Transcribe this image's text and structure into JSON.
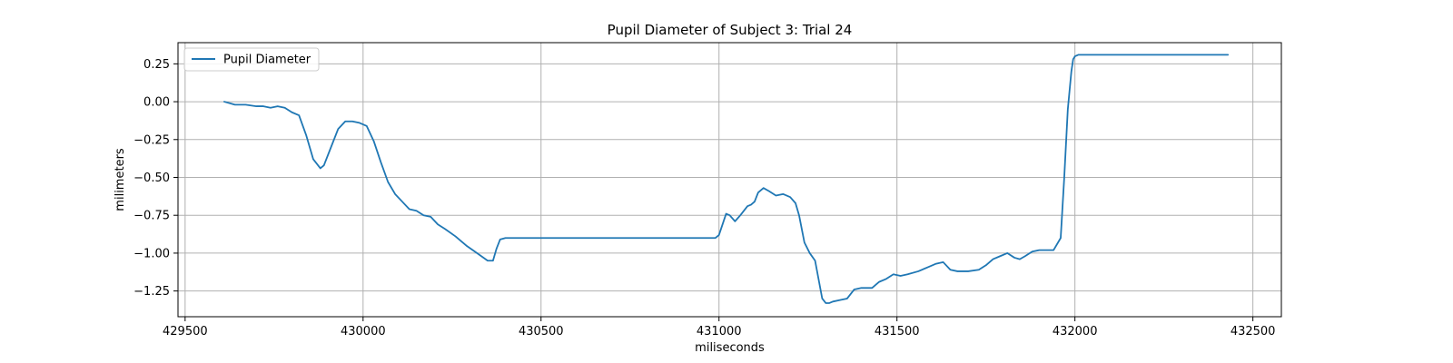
{
  "chart_data": {
    "type": "line",
    "title": "Pupil Diameter of Subject 3: Trial 24",
    "xlabel": "miliseconds",
    "ylabel": "milimeters",
    "xlim": [
      429480,
      432580
    ],
    "ylim": [
      -1.42,
      0.39
    ],
    "xticks": [
      429500,
      430000,
      430500,
      431000,
      431500,
      432000,
      432500
    ],
    "xtick_labels": [
      "429500",
      "430000",
      "430500",
      "431000",
      "431500",
      "432000",
      "432500"
    ],
    "yticks": [
      0.25,
      0.0,
      -0.25,
      -0.5,
      -0.75,
      -1.0,
      -1.25
    ],
    "ytick_labels": [
      "0.25",
      "0.00",
      "−0.25",
      "−0.50",
      "−0.75",
      "−1.00",
      "−1.25"
    ],
    "grid": true,
    "legend": {
      "position": "upper-left",
      "entries": [
        "Pupil Diameter"
      ]
    },
    "series": [
      {
        "name": "Pupil Diameter",
        "color": "#1f77b4",
        "x": [
          429610,
          429640,
          429670,
          429700,
          429720,
          429740,
          429760,
          429780,
          429800,
          429820,
          429840,
          429860,
          429880,
          429890,
          429910,
          429930,
          429950,
          429970,
          429990,
          430010,
          430030,
          430050,
          430070,
          430090,
          430110,
          430130,
          430150,
          430170,
          430190,
          430210,
          430230,
          430260,
          430290,
          430320,
          430350,
          430365,
          430375,
          430385,
          430400,
          430500,
          430600,
          430700,
          430800,
          430900,
          430990,
          431000,
          431010,
          431020,
          431030,
          431045,
          431060,
          431080,
          431090,
          431100,
          431110,
          431125,
          431140,
          431160,
          431180,
          431200,
          431215,
          431225,
          431240,
          431255,
          431270,
          431290,
          431300,
          431310,
          431320,
          431340,
          431360,
          431380,
          431400,
          431430,
          431450,
          431470,
          431490,
          431510,
          431530,
          431560,
          431590,
          431610,
          431630,
          431650,
          431670,
          431700,
          431730,
          431750,
          431770,
          431790,
          431810,
          431830,
          431845,
          431860,
          431880,
          431900,
          431920,
          431940,
          431960,
          431970,
          431980,
          431990,
          431995,
          432000,
          432010,
          432020,
          432100,
          432200,
          432300,
          432390,
          432430
        ],
        "y": [
          0.0,
          -0.02,
          -0.02,
          -0.03,
          -0.03,
          -0.04,
          -0.03,
          -0.04,
          -0.07,
          -0.09,
          -0.22,
          -0.38,
          -0.44,
          -0.42,
          -0.3,
          -0.18,
          -0.13,
          -0.13,
          -0.14,
          -0.16,
          -0.26,
          -0.4,
          -0.53,
          -0.61,
          -0.66,
          -0.71,
          -0.72,
          -0.75,
          -0.76,
          -0.81,
          -0.84,
          -0.89,
          -0.95,
          -1.0,
          -1.05,
          -1.05,
          -0.97,
          -0.91,
          -0.9,
          -0.9,
          -0.9,
          -0.9,
          -0.9,
          -0.9,
          -0.9,
          -0.88,
          -0.81,
          -0.74,
          -0.75,
          -0.79,
          -0.75,
          -0.69,
          -0.68,
          -0.66,
          -0.6,
          -0.57,
          -0.59,
          -0.62,
          -0.61,
          -0.63,
          -0.67,
          -0.75,
          -0.93,
          -1.0,
          -1.05,
          -1.3,
          -1.33,
          -1.33,
          -1.32,
          -1.31,
          -1.3,
          -1.24,
          -1.23,
          -1.23,
          -1.19,
          -1.17,
          -1.14,
          -1.15,
          -1.14,
          -1.12,
          -1.09,
          -1.07,
          -1.06,
          -1.11,
          -1.12,
          -1.12,
          -1.11,
          -1.08,
          -1.04,
          -1.02,
          -1.0,
          -1.03,
          -1.04,
          -1.02,
          -0.99,
          -0.98,
          -0.98,
          -0.98,
          -0.9,
          -0.5,
          -0.05,
          0.2,
          0.28,
          0.3,
          0.31,
          0.31,
          0.31,
          0.31,
          0.31,
          0.31,
          0.31
        ]
      }
    ]
  }
}
